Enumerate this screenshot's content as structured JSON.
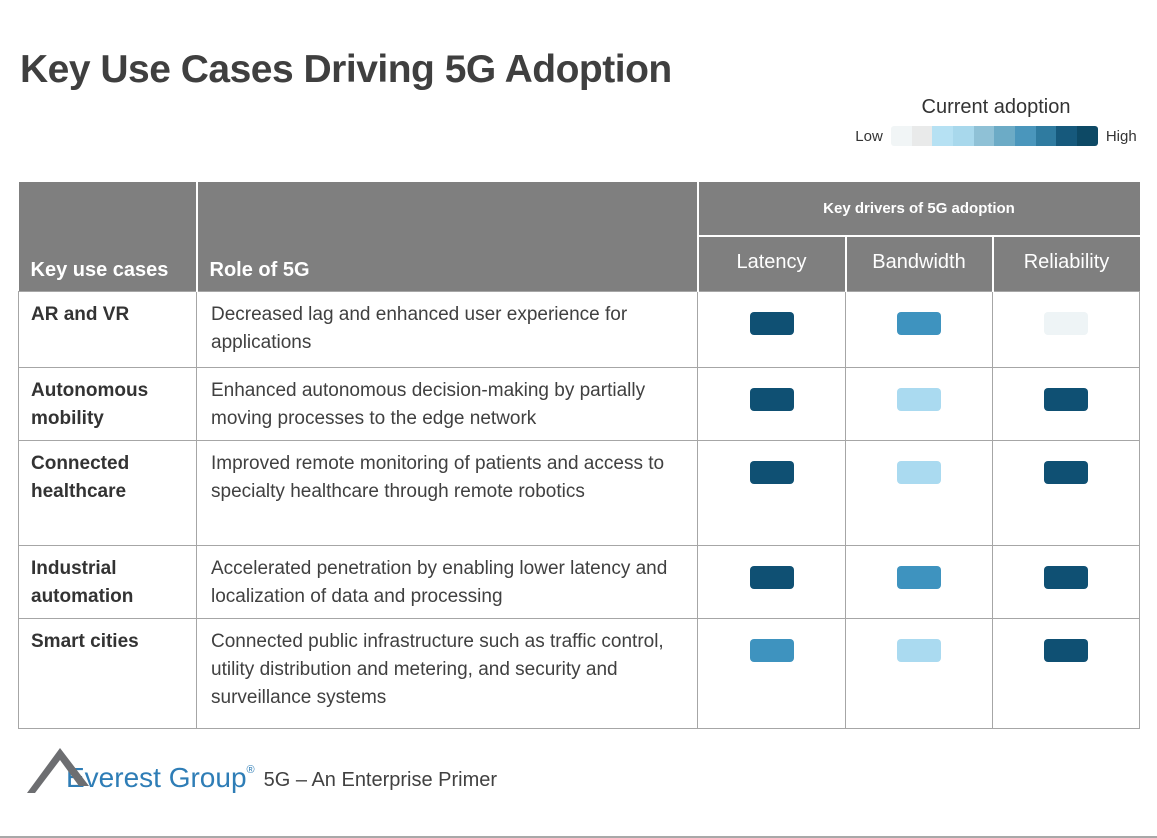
{
  "title": "Key Use Cases Driving 5G Adoption",
  "legend": {
    "title": "Current adoption",
    "low_label": "Low",
    "high_label": "High",
    "colors": [
      "#f1f5f6",
      "#e9eaea",
      "#b6e1f3",
      "#a8d8ec",
      "#8fc1d6",
      "#6cabc6",
      "#4a96bc",
      "#2f7ba0",
      "#16597c",
      "#0d4965"
    ]
  },
  "chip_colors": {
    "high": "#0f5073",
    "medium": "#3e93bf",
    "low": "#aadaf0",
    "minimal": "#eef4f6"
  },
  "table": {
    "col_use_cases": "Key use cases",
    "col_role": "Role of 5G",
    "drivers_group": "Key drivers of 5G adoption",
    "drivers": [
      "Latency",
      "Bandwidth",
      "Reliability"
    ],
    "rows": [
      {
        "use_case": "AR and VR",
        "role": "Decreased lag and enhanced user experience for applications",
        "levels": [
          "high",
          "medium",
          "minimal"
        ]
      },
      {
        "use_case": "Autonomous mobility",
        "role": "Enhanced autonomous decision-making by partially moving processes to the edge network",
        "levels": [
          "high",
          "low",
          "high"
        ]
      },
      {
        "use_case": "Connected healthcare",
        "role": "Improved remote monitoring of patients and access to specialty healthcare through remote robotics",
        "levels": [
          "high",
          "low",
          "high"
        ]
      },
      {
        "use_case": "Industrial automation",
        "role": "Accelerated penetration by enabling lower latency and localization of data and processing",
        "levels": [
          "high",
          "medium",
          "high"
        ]
      },
      {
        "use_case": "Smart cities",
        "role": "Connected public infrastructure such as traffic control, utility distribution and metering, and security and surveillance systems",
        "levels": [
          "medium",
          "low",
          "high"
        ]
      }
    ]
  },
  "chart_data": {
    "type": "heatmap",
    "title": "Key Use Cases Driving 5G Adoption",
    "rows": [
      "AR and VR",
      "Autonomous mobility",
      "Connected healthcare",
      "Industrial automation",
      "Smart cities"
    ],
    "columns": [
      "Latency",
      "Bandwidth",
      "Reliability"
    ],
    "values": [
      [
        "high",
        "medium",
        "very low"
      ],
      [
        "high",
        "low",
        "high"
      ],
      [
        "high",
        "low",
        "high"
      ],
      [
        "high",
        "medium",
        "high"
      ],
      [
        "medium",
        "low",
        "high"
      ]
    ],
    "legend": {
      "label": "Current adoption",
      "scale": [
        "Low",
        "High"
      ]
    }
  },
  "footer": {
    "brand": "Everest Group",
    "registered": "®",
    "doc_title": "5G – An Enterprise Primer"
  }
}
